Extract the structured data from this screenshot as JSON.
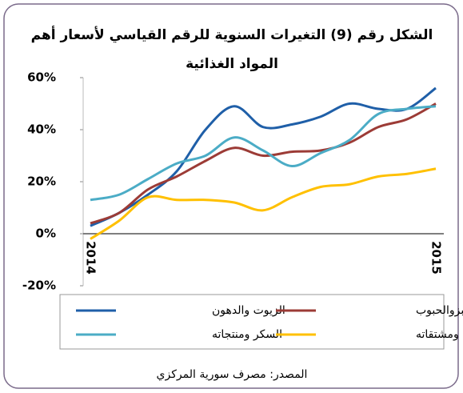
{
  "chart_data": {
    "type": "line",
    "title": [
      "الشكل رقم (9) التغيرات السنوية للرقم القياسي لأسعار أهم",
      "المواد الغذائية"
    ],
    "categories": [
      "2014",
      null,
      null,
      null,
      null,
      null,
      null,
      null,
      null,
      null,
      null,
      null,
      "2015"
    ],
    "series": [
      {
        "name": "الزيوت والدهون",
        "color": "#1f5fa8",
        "values": [
          3,
          8,
          15,
          24,
          40,
          49,
          41,
          42,
          45,
          50,
          48,
          48,
          56
        ]
      },
      {
        "name": "الخبزوالحبوب",
        "color": "#9c3b36",
        "values": [
          4,
          8,
          17,
          22,
          28,
          33,
          30,
          31.5,
          32,
          35,
          41,
          44,
          50
        ]
      },
      {
        "name": "السكر ومنتجاته",
        "color": "#4bacc6",
        "values": [
          13,
          15,
          21,
          27,
          30,
          37,
          32,
          26,
          31,
          36,
          46,
          48,
          49
        ]
      },
      {
        "name": "الحليب ومشتقاته",
        "color": "#ffc000",
        "values": [
          -2,
          5,
          14,
          13,
          13,
          12,
          9,
          14,
          18,
          19,
          22,
          23,
          25
        ]
      }
    ],
    "ylim": [
      -20,
      60
    ],
    "yticks": [
      {
        "value": -20,
        "label": "-20%"
      },
      {
        "value": 0,
        "label": "0%"
      },
      {
        "value": 20,
        "label": "20%"
      },
      {
        "value": 40,
        "label": "40%"
      },
      {
        "value": 60,
        "label": "60%"
      }
    ],
    "source": "المصدر: مصرف سورية المركزي"
  }
}
